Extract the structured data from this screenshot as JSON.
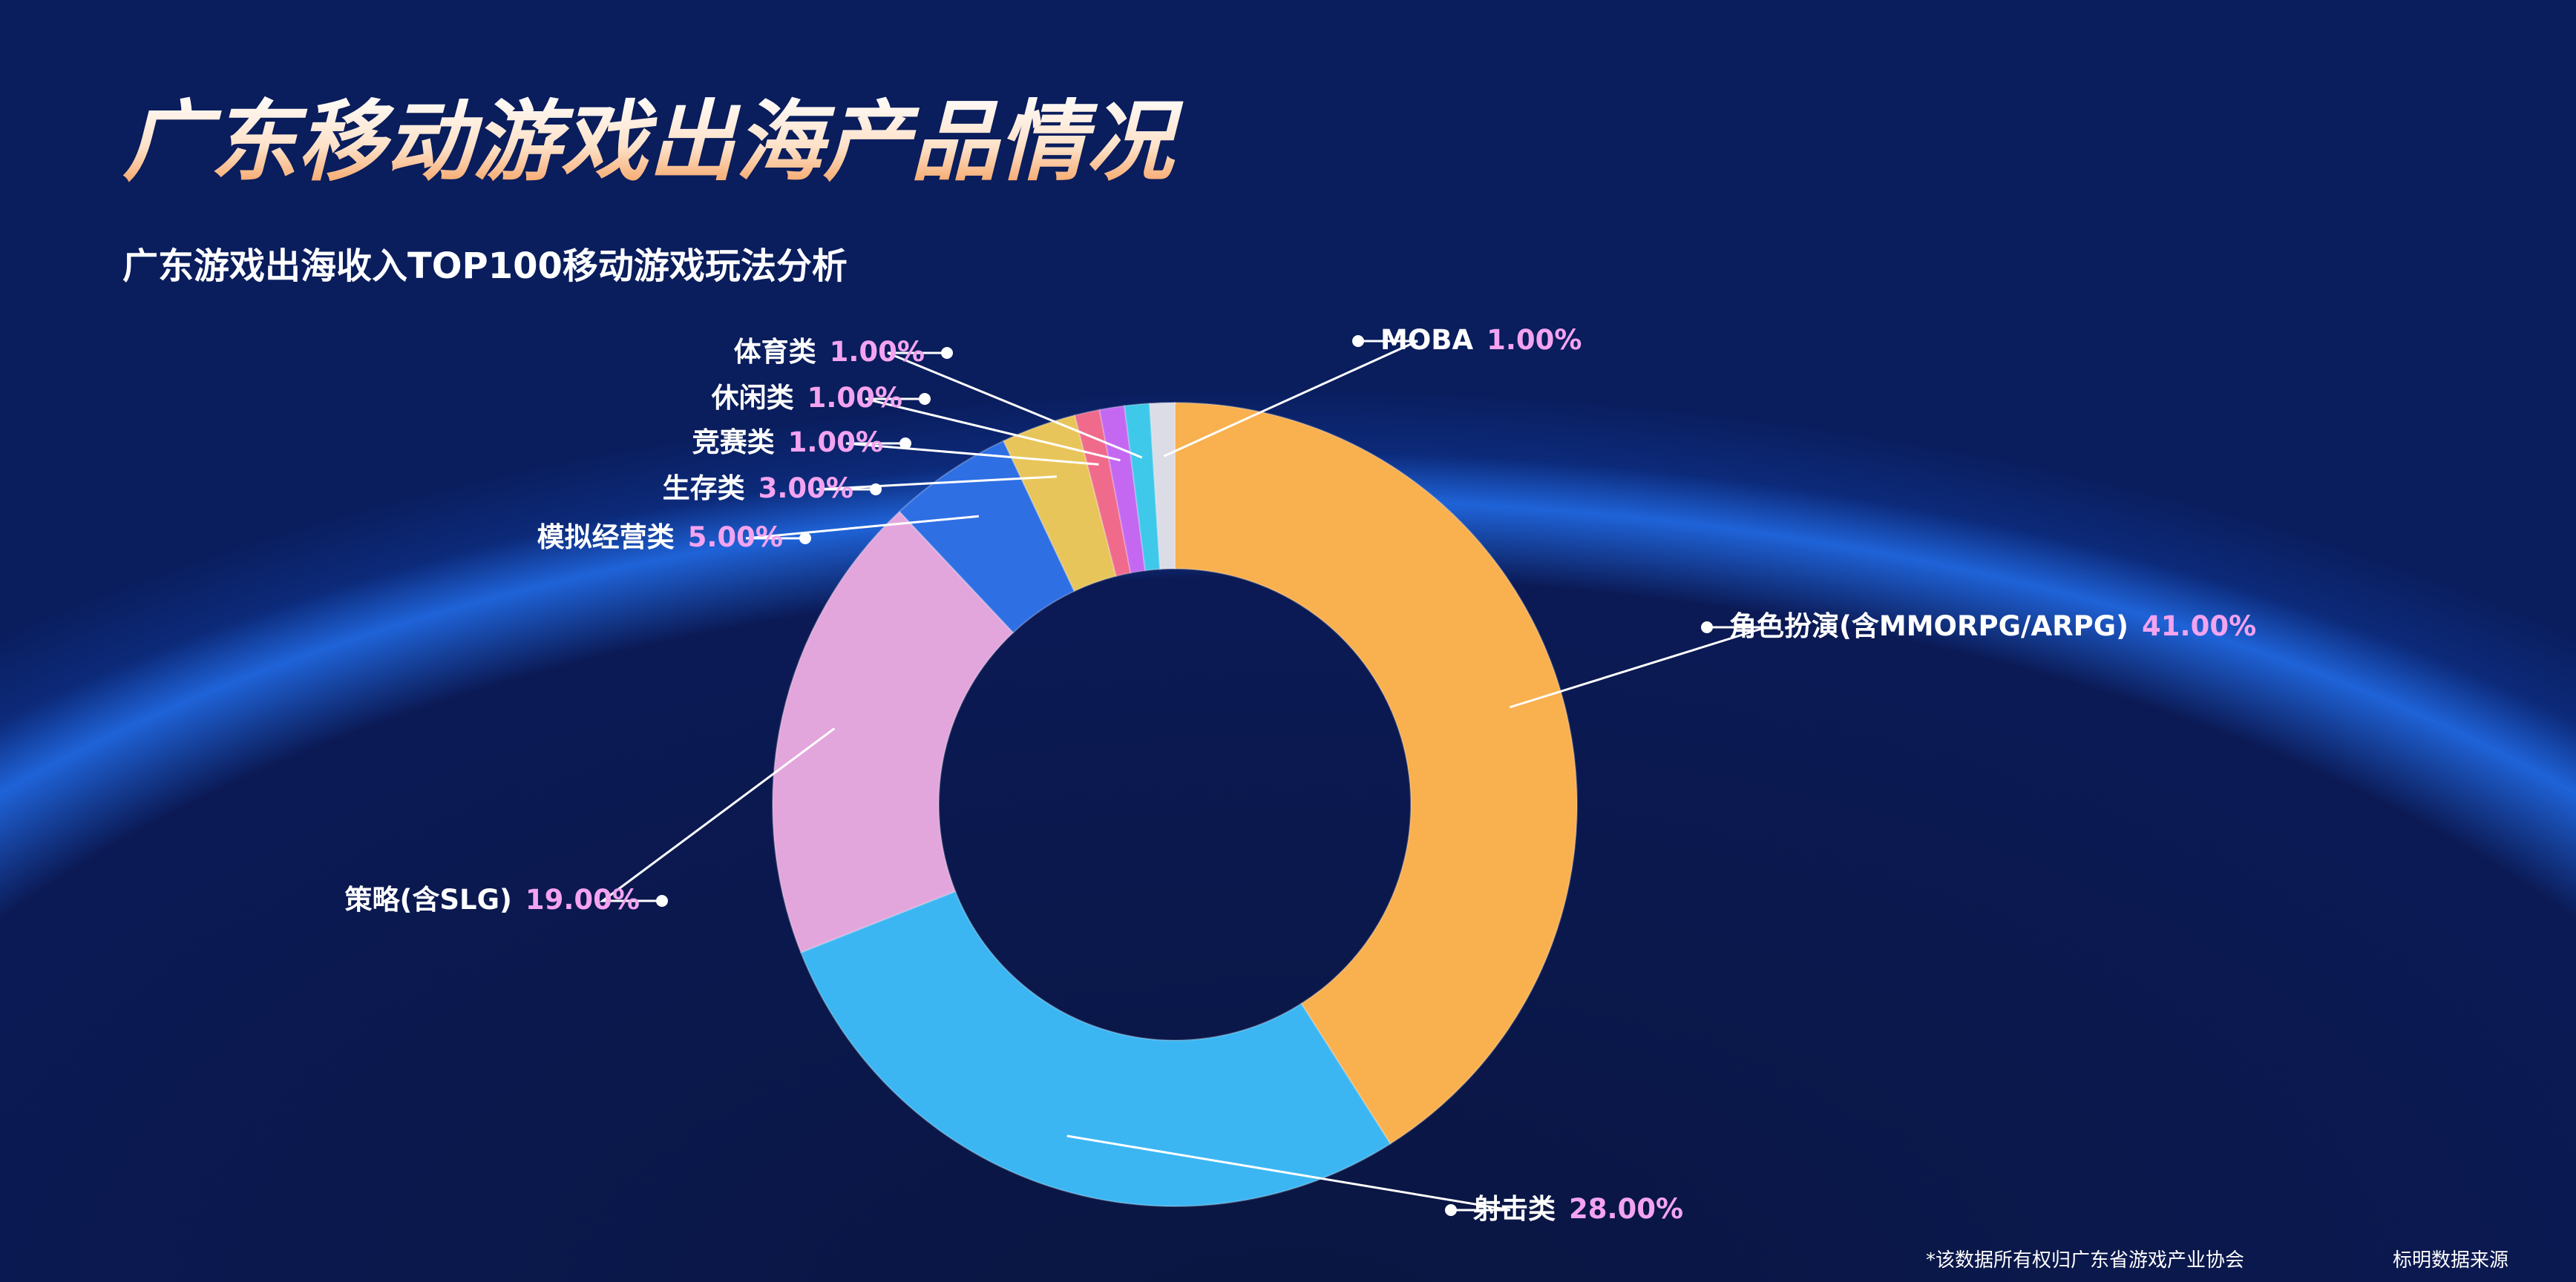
{
  "title": "广东移动游戏出海产品情况",
  "chart_data": {
    "type": "pie",
    "title": "广东游戏出海收入TOP100移动游戏玩法分析",
    "categories": [
      "角色扮演(含MMORPG/ARPG)",
      "射击类",
      "策略(含SLG)",
      "模拟经营类",
      "生存类",
      "竞赛类",
      "休闲类",
      "体育类",
      "MOBA"
    ],
    "values": [
      41,
      28,
      19,
      5,
      3,
      1,
      1,
      1,
      1
    ],
    "value_labels": [
      "41.00%",
      "28.00%",
      "19.00%",
      "5.00%",
      "3.00%",
      "1.00%",
      "1.00%",
      "1.00%",
      "1.00%"
    ],
    "colors": [
      "#f9b04e",
      "#3cb6f2",
      "#e3a6dc",
      "#2f6fe4",
      "#e8c55a",
      "#f06a8c",
      "#c468f2",
      "#3ec8ea",
      "#dcdce6"
    ],
    "donut": true
  },
  "footnote": [
    "*该数据所有权归广东省游戏产业协会",
    "标明数据来源"
  ]
}
